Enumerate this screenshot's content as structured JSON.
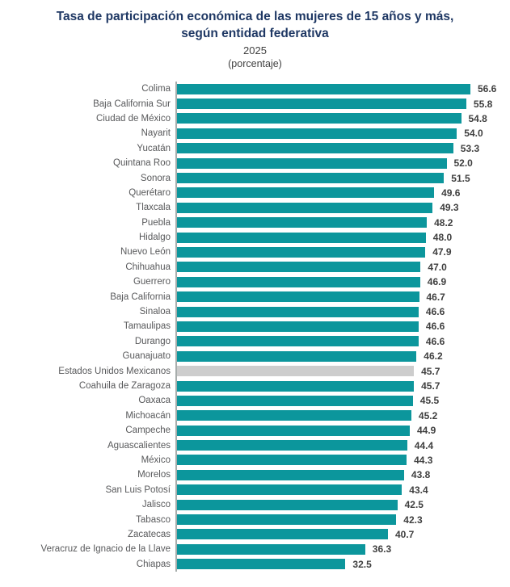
{
  "header": {
    "title_line1": "Tasa de participación económica de las mujeres de 15 años y más,",
    "title_line2": "según entidad federativa",
    "year": "2025",
    "unit": "(porcentaje)"
  },
  "colors": {
    "bar": "#0C969C",
    "bar_highlight": "#CDCDCD",
    "title": "#1F3864",
    "axis": "#A7ADAC",
    "category_label": "#58595B",
    "value_label": "#3F3F3F"
  },
  "chart_data": {
    "type": "bar",
    "orientation": "horizontal",
    "title": "Tasa de participación económica de las mujeres de 15 años y más, según entidad federativa",
    "subtitle": "2025",
    "unit": "(porcentaje)",
    "xlim": [
      0,
      60
    ],
    "grid": false,
    "legend": false,
    "value_labels_shown": true,
    "highlight_category": "Estados Unidos Mexicanos",
    "categories": [
      "Colima",
      "Baja California Sur",
      "Ciudad de México",
      "Nayarit",
      "Yucatán",
      "Quintana Roo",
      "Sonora",
      "Querétaro",
      "Tlaxcala",
      "Puebla",
      "Hidalgo",
      "Nuevo León",
      "Chihuahua",
      "Guerrero",
      "Baja California",
      "Sinaloa",
      "Tamaulipas",
      "Durango",
      "Guanajuato",
      "Estados Unidos Mexicanos",
      "Coahuila de Zaragoza",
      "Oaxaca",
      "Michoacán",
      "Campeche",
      "Aguascalientes",
      "México",
      "Morelos",
      "San Luis Potosí",
      "Jalisco",
      "Tabasco",
      "Zacatecas",
      "Veracruz de Ignacio de la Llave",
      "Chiapas"
    ],
    "values": [
      56.6,
      55.8,
      54.8,
      54.0,
      53.3,
      52.0,
      51.5,
      49.6,
      49.3,
      48.2,
      48.0,
      47.9,
      47.0,
      46.9,
      46.7,
      46.6,
      46.6,
      46.6,
      46.2,
      45.7,
      45.7,
      45.5,
      45.2,
      44.9,
      44.4,
      44.3,
      43.8,
      43.4,
      42.5,
      42.3,
      40.7,
      36.3,
      32.5
    ]
  }
}
